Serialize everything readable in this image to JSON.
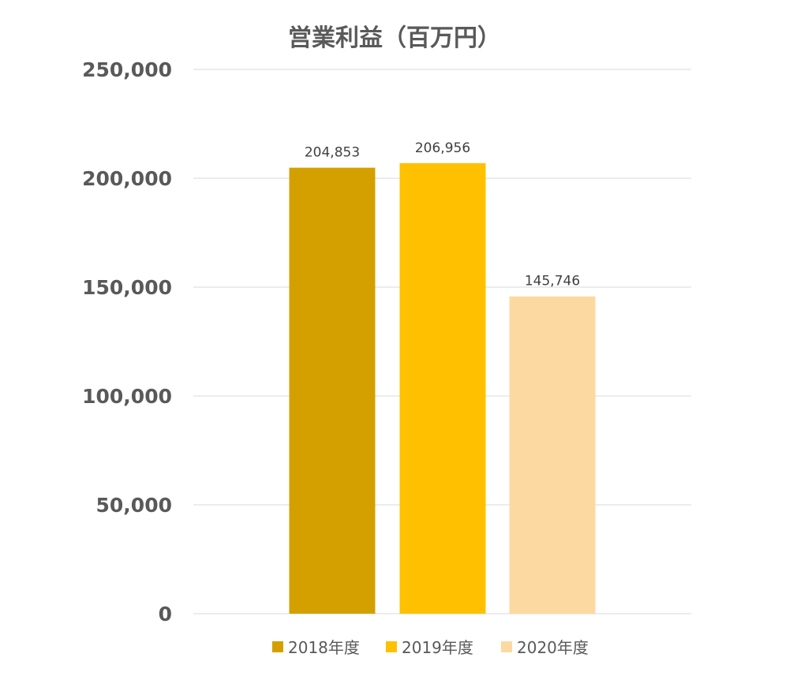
{
  "chart_data": {
    "type": "bar",
    "title": "営業利益（百万円）",
    "xlabel": "",
    "ylabel": "",
    "categories": [
      "2018年度",
      "2019年度",
      "2020年度"
    ],
    "values": [
      204853,
      206956,
      145746
    ],
    "value_labels": [
      "204,853",
      "206,956",
      "145,746"
    ],
    "colors": [
      "#d4a000",
      "#ffc000",
      "#fdd9a2"
    ],
    "ylim": [
      0,
      250000
    ],
    "yticks": [
      0,
      50000,
      100000,
      150000,
      200000,
      250000
    ],
    "ytick_labels": [
      "0",
      "50,000",
      "100,000",
      "150,000",
      "200,000",
      "250,000"
    ],
    "grid": true,
    "legend": {
      "placement": "bottom",
      "entries": [
        "2018年度",
        "2019年度",
        "2020年度"
      ]
    },
    "gridline_color": "#d9d9d9"
  }
}
